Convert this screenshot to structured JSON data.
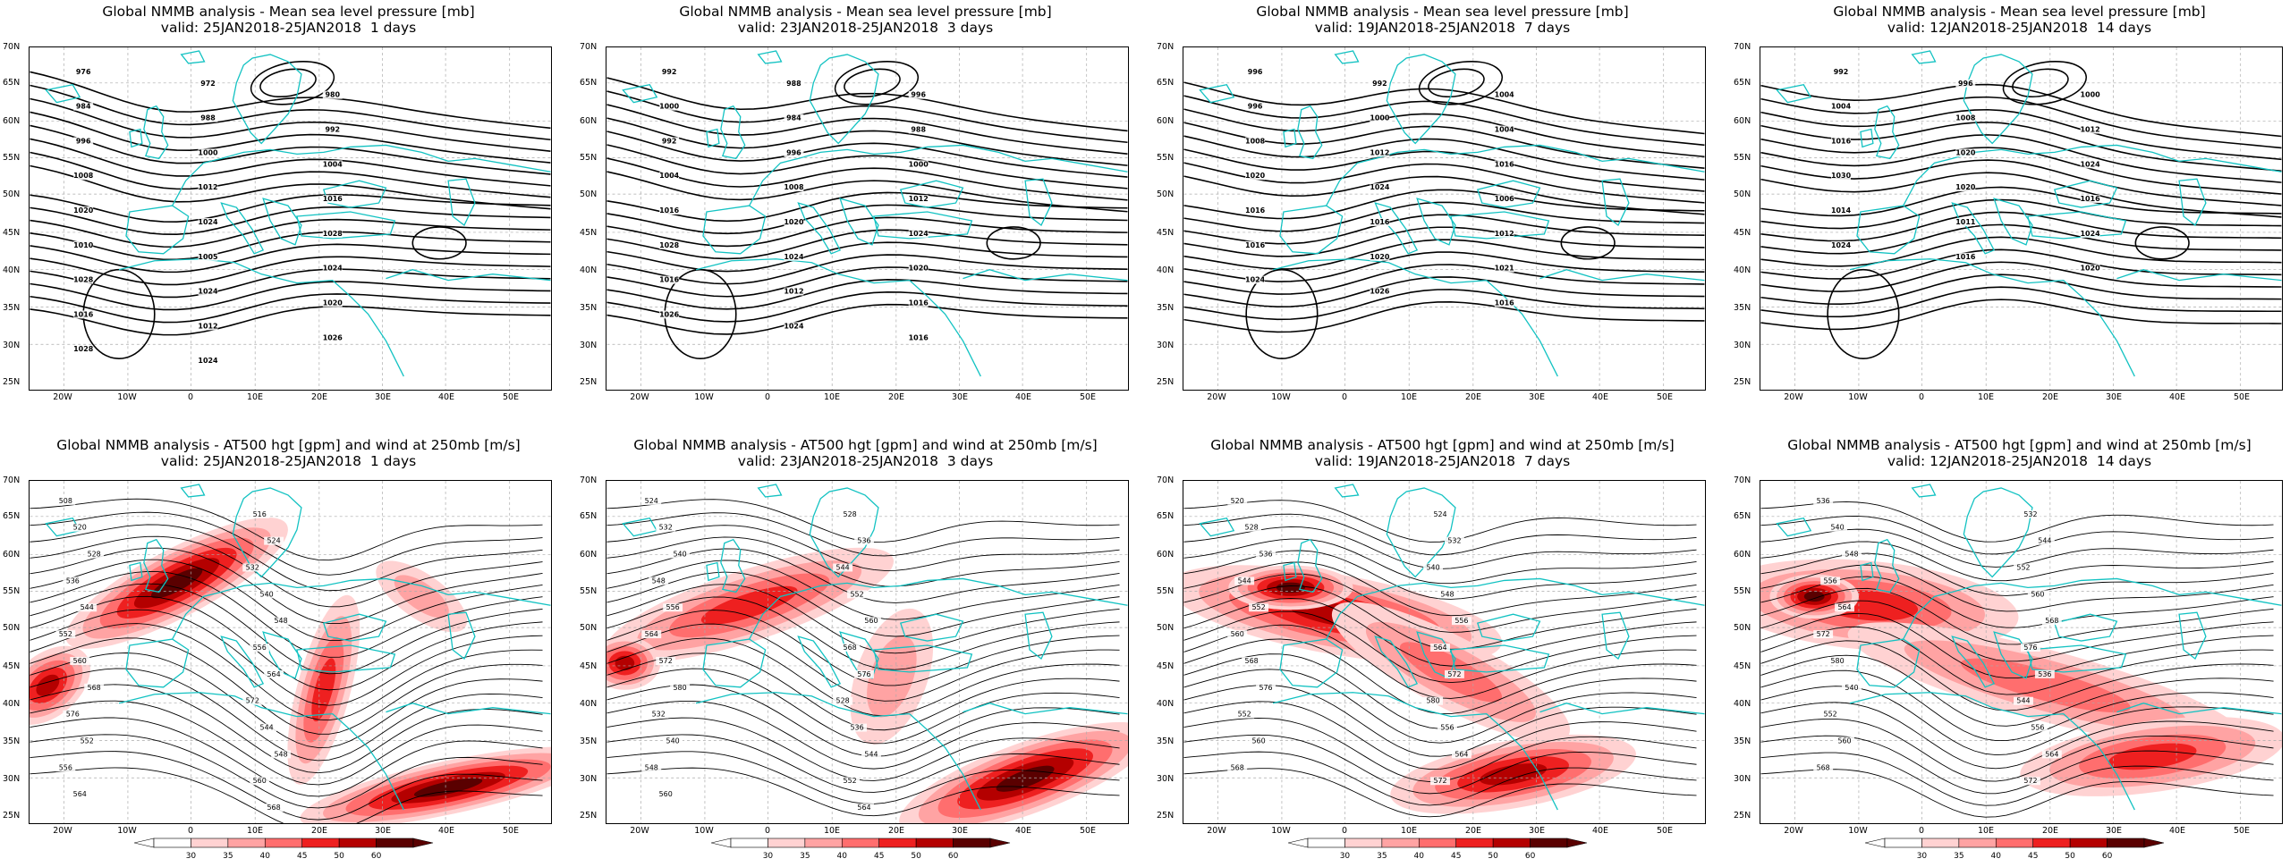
{
  "latitude_labels": [
    "70N",
    "65N",
    "60N",
    "55N",
    "50N",
    "45N",
    "40N",
    "35N",
    "30N",
    "25N"
  ],
  "longitude_labels": [
    "20W",
    "10W",
    "0",
    "10E",
    "20E",
    "30E",
    "40E",
    "50E"
  ],
  "colorbar": {
    "ticks": [
      "30",
      "35",
      "40",
      "45",
      "50",
      "60"
    ],
    "colors": [
      "#ffffff",
      "#ffd2d2",
      "#ffa3a3",
      "#ff6e6e",
      "#ee2020",
      "#b40000",
      "#5a0000"
    ]
  },
  "colors": {
    "coast": "#12c2c2",
    "contour": "#000000",
    "grid": "#aaaaaa"
  },
  "panels": [
    {
      "id": "mslp-1d",
      "title_line1": "Global NMMB analysis - Mean sea level pressure [mb]",
      "title_line2": "valid: 25JAN2018-25JAN2018  1 days",
      "contour_labels": [
        "976",
        "972",
        "980",
        "984",
        "988",
        "992",
        "996",
        "1000",
        "1004",
        "1008",
        "1012",
        "1016",
        "1020",
        "1024",
        "1028",
        "1010",
        "1005",
        "1024",
        "1028",
        "1024",
        "1020",
        "1016",
        "1012",
        "1026",
        "1028",
        "1024"
      ]
    },
    {
      "id": "mslp-3d",
      "title_line1": "Global NMMB analysis - Mean sea level pressure [mb]",
      "title_line2": "valid: 23JAN2018-25JAN2018  3 days",
      "contour_labels": [
        "992",
        "988",
        "996",
        "1000",
        "984",
        "988",
        "992",
        "996",
        "1000",
        "1004",
        "1008",
        "1012",
        "1016",
        "1020",
        "1024",
        "1028",
        "1024",
        "1020",
        "1016",
        "1012",
        "1016",
        "1026",
        "1024",
        "1016"
      ]
    },
    {
      "id": "mslp-7d",
      "title_line1": "Global NMMB analysis - Mean sea level pressure [mb]",
      "title_line2": "valid: 19JAN2018-25JAN2018  7 days",
      "contour_labels": [
        "996",
        "992",
        "1004",
        "996",
        "1000",
        "1004",
        "1008",
        "1012",
        "1016",
        "1020",
        "1024",
        "1006",
        "1016",
        "1016",
        "1012",
        "1016",
        "1020",
        "1021",
        "1024",
        "1026",
        "1016"
      ]
    },
    {
      "id": "mslp-14d",
      "title_line1": "Global NMMB analysis - Mean sea level pressure [mb]",
      "title_line2": "valid: 12JAN2018-25JAN2018  14 days",
      "contour_labels": [
        "992",
        "996",
        "1000",
        "1004",
        "1008",
        "1012",
        "1016",
        "1020",
        "1024",
        "1030",
        "1020",
        "1016",
        "1014",
        "1011",
        "1024",
        "1024",
        "1016",
        "1020"
      ]
    },
    {
      "id": "z500-1d",
      "title_line1": "Global NMMB analysis - AT500 hgt [gpm] and wind at 250mb [m/s]",
      "title_line2": "valid: 25JAN2018-25JAN2018  1 days",
      "contour_labels": [
        "508",
        "516",
        "520",
        "524",
        "528",
        "532",
        "536",
        "540",
        "544",
        "548",
        "552",
        "556",
        "560",
        "564",
        "568",
        "572",
        "576",
        "544",
        "552",
        "548",
        "556",
        "560",
        "564",
        "568"
      ]
    },
    {
      "id": "z500-3d",
      "title_line1": "Global NMMB analysis - AT500 hgt [gpm] and wind at 250mb [m/s]",
      "title_line2": "valid: 23JAN2018-25JAN2018  3 days",
      "contour_labels": [
        "524",
        "528",
        "532",
        "536",
        "540",
        "544",
        "548",
        "552",
        "556",
        "560",
        "564",
        "568",
        "572",
        "576",
        "580",
        "528",
        "532",
        "536",
        "540",
        "544",
        "548",
        "552",
        "560",
        "564"
      ]
    },
    {
      "id": "z500-7d",
      "title_line1": "Global NMMB analysis - AT500 hgt [gpm] and wind at 250mb [m/s]",
      "title_line2": "valid: 19JAN2018-25JAN2018  7 days",
      "contour_labels": [
        "520",
        "524",
        "528",
        "532",
        "536",
        "540",
        "544",
        "548",
        "552",
        "556",
        "560",
        "564",
        "568",
        "572",
        "576",
        "580",
        "552",
        "556",
        "560",
        "564",
        "568",
        "572"
      ]
    },
    {
      "id": "z500-14d",
      "title_line1": "Global NMMB analysis - AT500 hgt [gpm] and wind at 250mb [m/s]",
      "title_line2": "valid: 12JAN2018-25JAN2018  14 days",
      "contour_labels": [
        "536",
        "532",
        "540",
        "544",
        "548",
        "552",
        "556",
        "560",
        "564",
        "568",
        "572",
        "576",
        "580",
        "536",
        "540",
        "544",
        "552",
        "556",
        "560",
        "564",
        "568",
        "572"
      ]
    }
  ]
}
